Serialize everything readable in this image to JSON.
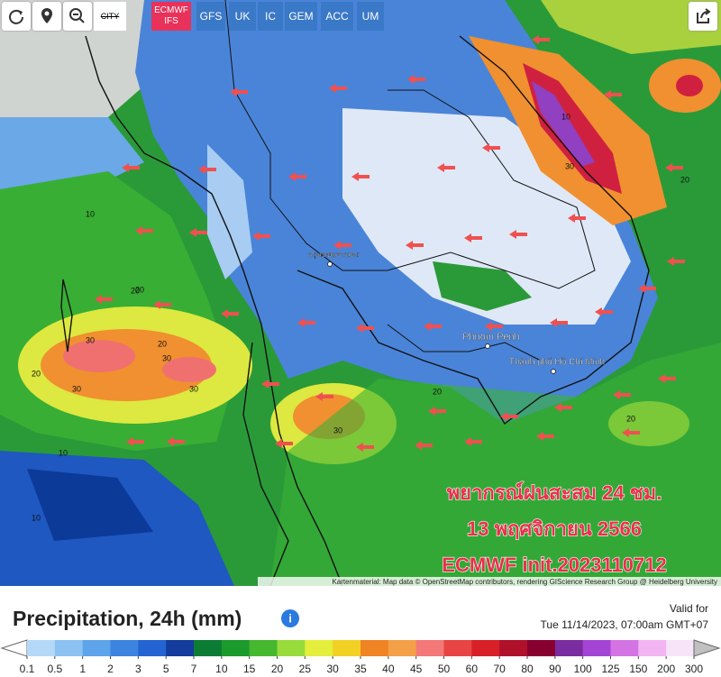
{
  "toolbar": {
    "city": "CITY",
    "models": [
      {
        "label": "ECMWF IFS",
        "active": true
      },
      {
        "label": "GFS",
        "active": false
      },
      {
        "label": "UK",
        "active": false
      },
      {
        "label": "IC",
        "active": false
      },
      {
        "label": "GEM",
        "active": false
      },
      {
        "label": "ACC",
        "active": false
      },
      {
        "label": "UM",
        "active": false
      }
    ]
  },
  "map": {
    "places": [
      "กรุงเทพมหานคร",
      "Phnom Penh",
      "Thành phố Hồ Chí Minh"
    ],
    "contour_labels": [
      10,
      20,
      30,
      30,
      30,
      20,
      20,
      10,
      30,
      20,
      10,
      20,
      30,
      20,
      10,
      20,
      30
    ],
    "overlay": [
      "พยากรณ์ฝนสะสม 24 ชม.",
      "13 พฤศจิกายน 2566",
      "ECMWF init.2023110712"
    ],
    "attribution": "Kartenmaterial: Map data © OpenStreetMap contributors, rendering GIScience Research Group @ Heidelberg University"
  },
  "legend": {
    "title": "Precipitation, 24h (mm)",
    "valid_label": "Valid for",
    "valid_time": "Tue 11/14/2023, 07:00am GMT+07",
    "ticks": [
      0.1,
      0.5,
      1,
      2,
      3,
      5,
      7,
      10,
      15,
      20,
      25,
      30,
      35,
      40,
      45,
      50,
      60,
      70,
      80,
      90,
      100,
      125,
      150,
      200,
      300
    ],
    "colors": [
      "#b4d8f8",
      "#8cc2f2",
      "#5ea4ea",
      "#3c84e0",
      "#2364d2",
      "#143c9c",
      "#0c7c34",
      "#1c9a2c",
      "#46b830",
      "#98dc3c",
      "#e4ee3c",
      "#f2d024",
      "#f08424",
      "#f4a048",
      "#f47878",
      "#e84444",
      "#d82028",
      "#b0102a",
      "#880030",
      "#7a2ca0",
      "#a444d4",
      "#d474e4",
      "#f2b4f2",
      "#f8e4f8"
    ]
  }
}
